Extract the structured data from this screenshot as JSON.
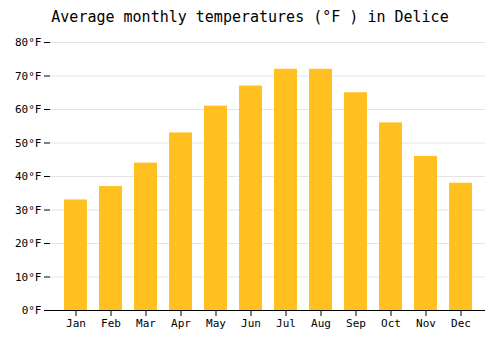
{
  "chart_data": {
    "type": "bar",
    "title": "Average monthly temperatures (°F ) in Delice",
    "categories": [
      "Jan",
      "Feb",
      "Mar",
      "Apr",
      "May",
      "Jun",
      "Jul",
      "Aug",
      "Sep",
      "Oct",
      "Nov",
      "Dec"
    ],
    "values": [
      33,
      37,
      44,
      53,
      61,
      67,
      72,
      72,
      65,
      56,
      46,
      38
    ],
    "color": "#FFC020",
    "ylim": [
      0,
      80
    ],
    "yticks": [
      {
        "value": 0,
        "label": "0°F"
      },
      {
        "value": 10,
        "label": "10°F"
      },
      {
        "value": 20,
        "label": "20°F"
      },
      {
        "value": 30,
        "label": "30°F"
      },
      {
        "value": 40,
        "label": "40°F"
      },
      {
        "value": 50,
        "label": "50°F"
      },
      {
        "value": 60,
        "label": "60°F"
      },
      {
        "value": 70,
        "label": "70°F"
      },
      {
        "value": 80,
        "label": "80°F"
      }
    ],
    "grid": true
  }
}
